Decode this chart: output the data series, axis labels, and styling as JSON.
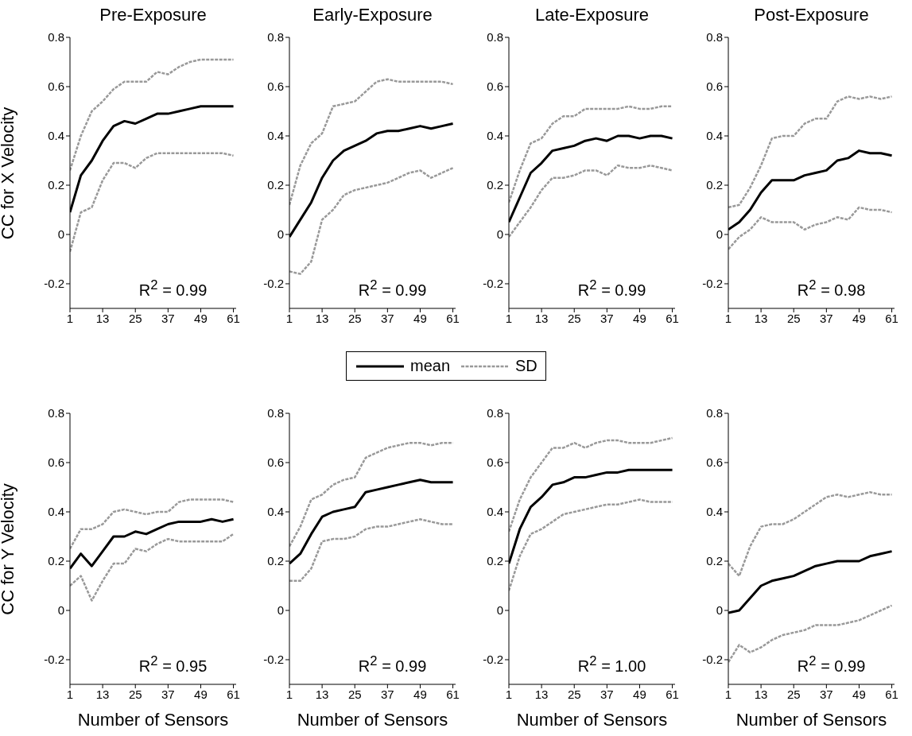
{
  "chart_data": [
    {
      "type": "line",
      "title": "Pre-Exposure",
      "ylabel": "CC for X Velocity",
      "annotations": [
        "R$^{2}$ = 0.99"
      ],
      "legend": "bottom",
      "x": [
        1,
        5,
        9,
        13,
        17,
        21,
        25,
        29,
        33,
        37,
        41,
        45,
        49,
        53,
        57,
        61
      ],
      "xlim": [
        1,
        62
      ],
      "xticks": [
        1,
        13,
        25,
        37,
        49,
        61
      ],
      "ylim": [
        -0.3,
        0.8
      ],
      "yticks": [
        -0.2,
        0,
        0.2,
        0.4,
        0.6,
        0.8
      ],
      "series": [
        {
          "name": "mean",
          "color": "#000000",
          "line_style": "solid",
          "values": [
            0.09,
            0.24,
            0.3,
            0.38,
            0.44,
            0.46,
            0.45,
            0.47,
            0.49,
            0.49,
            0.5,
            0.51,
            0.52,
            0.52,
            0.52,
            0.52
          ]
        },
        {
          "name": "SD",
          "color": "#999999",
          "line_style": "dashed",
          "values": [
            0.26,
            0.4,
            0.5,
            0.54,
            0.59,
            0.62,
            0.62,
            0.62,
            0.66,
            0.65,
            0.68,
            0.7,
            0.71,
            0.71,
            0.71,
            0.71
          ]
        },
        {
          "color": "#999999",
          "line_style": "dashed",
          "values": [
            -0.07,
            0.09,
            0.11,
            0.22,
            0.29,
            0.29,
            0.27,
            0.31,
            0.33,
            0.33,
            0.33,
            0.33,
            0.33,
            0.33,
            0.33,
            0.32
          ]
        }
      ]
    },
    {
      "type": "line",
      "title": "Early-Exposure",
      "annotations": [
        "R$^{2}$ = 0.99"
      ],
      "x": [
        1,
        5,
        9,
        13,
        17,
        21,
        25,
        29,
        33,
        37,
        41,
        45,
        49,
        53,
        57,
        61
      ],
      "xlim": [
        1,
        62
      ],
      "xticks": [
        1,
        13,
        25,
        37,
        49,
        61
      ],
      "ylim": [
        -0.3,
        0.8
      ],
      "yticks": [
        -0.2,
        0,
        0.2,
        0.4,
        0.6,
        0.8
      ],
      "series": [
        {
          "color": "#000000",
          "line_style": "solid",
          "values": [
            -0.01,
            0.06,
            0.13,
            0.23,
            0.3,
            0.34,
            0.36,
            0.38,
            0.41,
            0.42,
            0.42,
            0.43,
            0.44,
            0.43,
            0.44,
            0.45
          ]
        },
        {
          "color": "#999999",
          "line_style": "dashed",
          "values": [
            0.12,
            0.28,
            0.37,
            0.41,
            0.52,
            0.53,
            0.54,
            0.58,
            0.62,
            0.63,
            0.62,
            0.62,
            0.62,
            0.62,
            0.62,
            0.61
          ]
        },
        {
          "color": "#999999",
          "line_style": "dashed",
          "values": [
            -0.15,
            -0.16,
            -0.11,
            0.06,
            0.1,
            0.16,
            0.18,
            0.19,
            0.2,
            0.21,
            0.23,
            0.25,
            0.26,
            0.23,
            0.25,
            0.27
          ]
        }
      ]
    },
    {
      "type": "line",
      "title": "Late-Exposure",
      "annotations": [
        "R$^{2}$ = 0.99"
      ],
      "x": [
        1,
        5,
        9,
        13,
        17,
        21,
        25,
        29,
        33,
        37,
        41,
        45,
        49,
        53,
        57,
        61
      ],
      "xlim": [
        1,
        62
      ],
      "xticks": [
        1,
        13,
        25,
        37,
        49,
        61
      ],
      "ylim": [
        -0.3,
        0.8
      ],
      "yticks": [
        -0.2,
        0,
        0.2,
        0.4,
        0.6,
        0.8
      ],
      "series": [
        {
          "color": "#000000",
          "line_style": "solid",
          "values": [
            0.05,
            0.15,
            0.25,
            0.29,
            0.34,
            0.35,
            0.36,
            0.38,
            0.39,
            0.38,
            0.4,
            0.4,
            0.39,
            0.4,
            0.4,
            0.39
          ]
        },
        {
          "color": "#999999",
          "line_style": "dashed",
          "values": [
            0.13,
            0.26,
            0.37,
            0.39,
            0.45,
            0.48,
            0.48,
            0.51,
            0.51,
            0.51,
            0.51,
            0.52,
            0.51,
            0.51,
            0.52,
            0.52
          ]
        },
        {
          "color": "#999999",
          "line_style": "dashed",
          "values": [
            -0.01,
            0.05,
            0.11,
            0.18,
            0.23,
            0.23,
            0.24,
            0.26,
            0.26,
            0.24,
            0.28,
            0.27,
            0.27,
            0.28,
            0.27,
            0.26
          ]
        }
      ]
    },
    {
      "type": "line",
      "title": "Post-Exposure",
      "annotations": [
        "R$^{2}$ = 0.98"
      ],
      "x": [
        1,
        5,
        9,
        13,
        17,
        21,
        25,
        29,
        33,
        37,
        41,
        45,
        49,
        53,
        57,
        61
      ],
      "xlim": [
        1,
        62
      ],
      "xticks": [
        1,
        13,
        25,
        37,
        49,
        61
      ],
      "ylim": [
        -0.3,
        0.8
      ],
      "yticks": [
        -0.2,
        0,
        0.2,
        0.4,
        0.6,
        0.8
      ],
      "series": [
        {
          "color": "#000000",
          "line_style": "solid",
          "values": [
            0.02,
            0.05,
            0.1,
            0.17,
            0.22,
            0.22,
            0.22,
            0.24,
            0.25,
            0.26,
            0.3,
            0.31,
            0.34,
            0.33,
            0.33,
            0.32
          ]
        },
        {
          "color": "#999999",
          "line_style": "dashed",
          "values": [
            0.11,
            0.12,
            0.19,
            0.28,
            0.39,
            0.4,
            0.4,
            0.45,
            0.47,
            0.47,
            0.54,
            0.56,
            0.55,
            0.56,
            0.55,
            0.56
          ]
        },
        {
          "color": "#999999",
          "line_style": "dashed",
          "values": [
            -0.06,
            -0.01,
            0.02,
            0.07,
            0.05,
            0.05,
            0.05,
            0.02,
            0.04,
            0.05,
            0.07,
            0.06,
            0.11,
            0.1,
            0.1,
            0.09
          ]
        }
      ]
    },
    {
      "type": "line",
      "ylabel": "CC for Y Velocity",
      "xlabel": "Number of Sensors",
      "annotations": [
        "R$^{2}$ = 0.95"
      ],
      "x": [
        1,
        5,
        9,
        13,
        17,
        21,
        25,
        29,
        33,
        37,
        41,
        45,
        49,
        53,
        57,
        61
      ],
      "xlim": [
        1,
        62
      ],
      "xticks": [
        1,
        13,
        25,
        37,
        49,
        61
      ],
      "ylim": [
        -0.3,
        0.8
      ],
      "yticks": [
        -0.2,
        0,
        0.2,
        0.4,
        0.6,
        0.8
      ],
      "series": [
        {
          "color": "#000000",
          "line_style": "solid",
          "values": [
            0.17,
            0.23,
            0.18,
            0.24,
            0.3,
            0.3,
            0.32,
            0.31,
            0.33,
            0.35,
            0.36,
            0.36,
            0.36,
            0.37,
            0.36,
            0.37
          ]
        },
        {
          "color": "#999999",
          "line_style": "dashed",
          "values": [
            0.25,
            0.33,
            0.33,
            0.35,
            0.4,
            0.41,
            0.4,
            0.39,
            0.4,
            0.4,
            0.44,
            0.45,
            0.45,
            0.45,
            0.45,
            0.44
          ]
        },
        {
          "color": "#999999",
          "line_style": "dashed",
          "values": [
            0.1,
            0.14,
            0.04,
            0.12,
            0.19,
            0.19,
            0.25,
            0.24,
            0.27,
            0.29,
            0.28,
            0.28,
            0.28,
            0.28,
            0.28,
            0.31
          ]
        }
      ]
    },
    {
      "type": "line",
      "xlabel": "Number of Sensors",
      "annotations": [
        "R$^{2}$ = 0.99"
      ],
      "x": [
        1,
        5,
        9,
        13,
        17,
        21,
        25,
        29,
        33,
        37,
        41,
        45,
        49,
        53,
        57,
        61
      ],
      "xlim": [
        1,
        62
      ],
      "xticks": [
        1,
        13,
        25,
        37,
        49,
        61
      ],
      "ylim": [
        -0.3,
        0.8
      ],
      "yticks": [
        -0.2,
        0,
        0.2,
        0.4,
        0.6,
        0.8
      ],
      "series": [
        {
          "color": "#000000",
          "line_style": "solid",
          "values": [
            0.19,
            0.23,
            0.31,
            0.38,
            0.4,
            0.41,
            0.42,
            0.48,
            0.49,
            0.5,
            0.51,
            0.52,
            0.53,
            0.52,
            0.52,
            0.52
          ]
        },
        {
          "color": "#999999",
          "line_style": "dashed",
          "values": [
            0.26,
            0.34,
            0.45,
            0.47,
            0.51,
            0.53,
            0.54,
            0.62,
            0.64,
            0.66,
            0.67,
            0.68,
            0.68,
            0.67,
            0.68,
            0.68
          ]
        },
        {
          "color": "#999999",
          "line_style": "dashed",
          "values": [
            0.12,
            0.12,
            0.17,
            0.28,
            0.29,
            0.29,
            0.3,
            0.33,
            0.34,
            0.34,
            0.35,
            0.36,
            0.37,
            0.36,
            0.35,
            0.35
          ]
        }
      ]
    },
    {
      "type": "line",
      "xlabel": "Number of Sensors",
      "annotations": [
        "R$^{2}$ = 1.00"
      ],
      "x": [
        1,
        5,
        9,
        13,
        17,
        21,
        25,
        29,
        33,
        37,
        41,
        45,
        49,
        53,
        57,
        61
      ],
      "xlim": [
        1,
        62
      ],
      "xticks": [
        1,
        13,
        25,
        37,
        49,
        61
      ],
      "ylim": [
        -0.3,
        0.8
      ],
      "yticks": [
        -0.2,
        0,
        0.2,
        0.4,
        0.6,
        0.8
      ],
      "series": [
        {
          "color": "#000000",
          "line_style": "solid",
          "values": [
            0.19,
            0.33,
            0.42,
            0.46,
            0.51,
            0.52,
            0.54,
            0.54,
            0.55,
            0.56,
            0.56,
            0.57,
            0.57,
            0.57,
            0.57,
            0.57
          ]
        },
        {
          "color": "#999999",
          "line_style": "dashed",
          "values": [
            0.32,
            0.45,
            0.54,
            0.6,
            0.66,
            0.66,
            0.68,
            0.66,
            0.68,
            0.69,
            0.69,
            0.68,
            0.68,
            0.68,
            0.69,
            0.7
          ]
        },
        {
          "color": "#999999",
          "line_style": "dashed",
          "values": [
            0.08,
            0.22,
            0.31,
            0.33,
            0.36,
            0.39,
            0.4,
            0.41,
            0.42,
            0.43,
            0.43,
            0.44,
            0.45,
            0.44,
            0.44,
            0.44
          ]
        }
      ]
    },
    {
      "type": "line",
      "xlabel": "Number of Sensors",
      "annotations": [
        "R$^{2}$ = 0.99"
      ],
      "x": [
        1,
        5,
        9,
        13,
        17,
        21,
        25,
        29,
        33,
        37,
        41,
        45,
        49,
        53,
        57,
        61
      ],
      "xlim": [
        1,
        62
      ],
      "xticks": [
        1,
        13,
        25,
        37,
        49,
        61
      ],
      "ylim": [
        -0.3,
        0.8
      ],
      "yticks": [
        -0.2,
        0,
        0.2,
        0.4,
        0.6,
        0.8
      ],
      "series": [
        {
          "color": "#000000",
          "line_style": "solid",
          "values": [
            -0.01,
            0.0,
            0.05,
            0.1,
            0.12,
            0.13,
            0.14,
            0.16,
            0.18,
            0.19,
            0.2,
            0.2,
            0.2,
            0.22,
            0.23,
            0.24
          ]
        },
        {
          "color": "#999999",
          "line_style": "dashed",
          "values": [
            0.19,
            0.14,
            0.26,
            0.34,
            0.35,
            0.35,
            0.37,
            0.4,
            0.43,
            0.46,
            0.47,
            0.46,
            0.47,
            0.48,
            0.47,
            0.47
          ]
        },
        {
          "color": "#999999",
          "line_style": "dashed",
          "values": [
            -0.21,
            -0.14,
            -0.17,
            -0.15,
            -0.12,
            -0.1,
            -0.09,
            -0.08,
            -0.06,
            -0.06,
            -0.06,
            -0.05,
            -0.04,
            -0.02,
            0.0,
            0.02
          ]
        }
      ]
    }
  ]
}
